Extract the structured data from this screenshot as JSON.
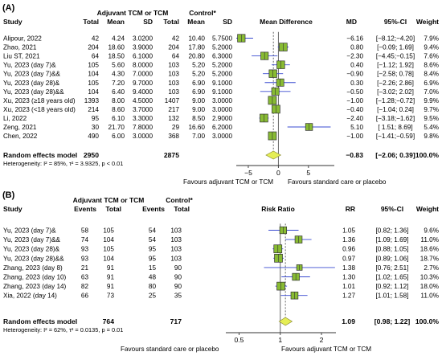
{
  "chart_data": [
    {
      "type": "forest",
      "panel_label": "(A)",
      "column_headers": {
        "study": "Study",
        "group_treatment": "Adjuvant TCM or TCM",
        "group_control": "Control*",
        "total": "Total",
        "mean": "Mean",
        "sd": "SD",
        "effect": "Mean Difference",
        "estimate": "MD",
        "ci": "95%-CI",
        "weight": "Weight"
      },
      "studies": [
        {
          "name": "Alipour, 2022",
          "t_total": "42",
          "t_mean": "4.24",
          "t_sd": "3.0200",
          "c_total": "42",
          "c_mean": "10.40",
          "c_sd": "5.7500",
          "est": -6.16,
          "lo": -8.12,
          "hi": -4.2,
          "est_text": "−6.16",
          "ci_text": "[−8.12;−4.20]",
          "weight": "7.9%"
        },
        {
          "name": "Zhao, 2021",
          "t_total": "204",
          "t_mean": "18.60",
          "t_sd": "3.9000",
          "c_total": "204",
          "c_mean": "17.80",
          "c_sd": "5.2000",
          "est": 0.8,
          "lo": -0.09,
          "hi": 1.69,
          "est_text": "0.80",
          "ci_text": "[−0.09; 1.69]",
          "weight": "9.4%"
        },
        {
          "name": "Liu ST, 2021",
          "t_total": "64",
          "t_mean": "18.50",
          "t_sd": "6.1000",
          "c_total": "64",
          "c_mean": "20.80",
          "c_sd": "6.3000",
          "est": -2.3,
          "lo": -4.45,
          "hi": -0.15,
          "est_text": "−2.30",
          "ci_text": "[−4.45;−0.15]",
          "weight": "7.6%"
        },
        {
          "name": "Yu, 2023 (day 7)&",
          "t_total": "105",
          "t_mean": "5.60",
          "t_sd": "8.0000",
          "c_total": "103",
          "c_mean": "5.20",
          "c_sd": "5.2000",
          "est": 0.4,
          "lo": -1.12,
          "hi": 1.92,
          "est_text": "0.40",
          "ci_text": "[−1.12; 1.92]",
          "weight": "8.6%"
        },
        {
          "name": "Yu, 2023 (day 7)&&",
          "t_total": "104",
          "t_mean": "4.30",
          "t_sd": "7.0000",
          "c_total": "103",
          "c_mean": "5.20",
          "c_sd": "5.2000",
          "est": -0.9,
          "lo": -2.58,
          "hi": 0.78,
          "est_text": "−0.90",
          "ci_text": "[−2.58; 0.78]",
          "weight": "8.4%"
        },
        {
          "name": "Yu, 2023 (day 28)&",
          "t_total": "105",
          "t_mean": "7.20",
          "t_sd": "9.7000",
          "c_total": "103",
          "c_mean": "6.90",
          "c_sd": "9.1000",
          "est": 0.3,
          "lo": -2.26,
          "hi": 2.86,
          "est_text": "0.30",
          "ci_text": "[−2.26; 2.86]",
          "weight": "6.9%"
        },
        {
          "name": "Yu, 2023 (day 28)&&",
          "t_total": "104",
          "t_mean": "6.40",
          "t_sd": "9.4000",
          "c_total": "103",
          "c_mean": "6.90",
          "c_sd": "9.1000",
          "est": -0.5,
          "lo": -3.02,
          "hi": 2.02,
          "est_text": "−0.50",
          "ci_text": "[−3.02; 2.02]",
          "weight": "7.0%"
        },
        {
          "name": "Xu, 2023 (≥18 years old)",
          "t_total": "1393",
          "t_mean": "8.00",
          "t_sd": "4.5000",
          "c_total": "1407",
          "c_mean": "9.00",
          "c_sd": "3.0000",
          "est": -1.0,
          "lo": -1.28,
          "hi": -0.72,
          "est_text": "−1.00",
          "ci_text": "[−1.28;−0.72]",
          "weight": "9.9%"
        },
        {
          "name": "Xu, 2023 (<18 years old)",
          "t_total": "214",
          "t_mean": "8.60",
          "t_sd": "3.7000",
          "c_total": "217",
          "c_mean": "9.00",
          "c_sd": "3.0000",
          "est": -0.4,
          "lo": -1.04,
          "hi": 0.24,
          "est_text": "−0.40",
          "ci_text": "[−1.04; 0.24]",
          "weight": "9.7%"
        },
        {
          "name": "Li, 2022",
          "t_total": "95",
          "t_mean": "6.10",
          "t_sd": "3.3000",
          "c_total": "132",
          "c_mean": "8.50",
          "c_sd": "2.9000",
          "est": -2.4,
          "lo": -3.18,
          "hi": -1.62,
          "est_text": "−2.40",
          "ci_text": "[−3.18;−1.62]",
          "weight": "9.5%"
        },
        {
          "name": "Zeng, 2021",
          "t_total": "30",
          "t_mean": "21.70",
          "t_sd": "7.8000",
          "c_total": "29",
          "c_mean": "16.60",
          "c_sd": "6.2000",
          "est": 5.1,
          "lo": 1.51,
          "hi": 8.69,
          "est_text": "5.10",
          "ci_text": "[ 1.51; 8.69]",
          "weight": "5.4%"
        },
        {
          "name": "Chen, 2022",
          "t_total": "490",
          "t_mean": "6.00",
          "t_sd": "3.0000",
          "c_total": "368",
          "c_mean": "7.00",
          "c_sd": "3.0000",
          "est": -1.0,
          "lo": -1.41,
          "hi": -0.59,
          "est_text": "−1.00",
          "ci_text": "[−1.41;−0.59]",
          "weight": "9.8%"
        }
      ],
      "pooled": {
        "label": "Random effects model",
        "t_total": "2950",
        "c_total": "2875",
        "est": -0.83,
        "lo": -2.06,
        "hi": 0.39,
        "est_text": "−0.83",
        "ci_text": "[−2.06; 0.39]",
        "weight": "100.0%"
      },
      "heterogeneity": "Heterogeneity: I² = 85%, τ² = 3.9325, p < 0.01",
      "axis": {
        "min": -7,
        "max": 9.3,
        "ticks": [
          -5,
          0,
          5
        ],
        "tick_labels": [
          "−5",
          "0",
          "5"
        ],
        "null_value": 0
      },
      "favours_left": "Favours adjuvant TCM or TCM",
      "favours_right": "Favours standard care or placebo",
      "colors": {
        "box": "#88bb33",
        "box_border": "#333333",
        "ci_line": "#3a4bd0",
        "diamond": "#e5ee55",
        "reference_line": "#555555",
        "text": "#1a1a1a"
      }
    },
    {
      "type": "forest",
      "panel_label": "(B)",
      "column_headers": {
        "study": "Study",
        "group_treatment": "Adjuvant TCM or TCM",
        "group_control": "Control*",
        "events": "Events",
        "total": "Total",
        "effect": "Risk Ratio",
        "estimate": "RR",
        "ci": "95%-CI",
        "weight": "Weight"
      },
      "studies": [
        {
          "name": "Yu, 2023 (day 7)&",
          "t_events": "58",
          "t_total": "105",
          "c_events": "54",
          "c_total": "103",
          "est": 1.05,
          "lo": 0.82,
          "hi": 1.36,
          "est_text": "1.05",
          "ci_text": "[0.82; 1.36]",
          "weight": "9.6%"
        },
        {
          "name": "Yu, 2023 (day 7)&&",
          "t_events": "74",
          "t_total": "104",
          "c_events": "54",
          "c_total": "103",
          "est": 1.36,
          "lo": 1.09,
          "hi": 1.69,
          "est_text": "1.36",
          "ci_text": "[1.09; 1.69]",
          "weight": "11.0%"
        },
        {
          "name": "Yu, 2023 (day 28)&",
          "t_events": "93",
          "t_total": "105",
          "c_events": "95",
          "c_total": "103",
          "est": 0.96,
          "lo": 0.88,
          "hi": 1.05,
          "est_text": "0.96",
          "ci_text": "[0.88; 1.05]",
          "weight": "18.6%"
        },
        {
          "name": "Yu, 2023 (day 28)&&",
          "t_events": "93",
          "t_total": "104",
          "c_events": "95",
          "c_total": "103",
          "est": 0.97,
          "lo": 0.89,
          "hi": 1.06,
          "est_text": "0.97",
          "ci_text": "[0.89; 1.06]",
          "weight": "18.7%"
        },
        {
          "name": "Zhang, 2023 (day 8)",
          "t_events": "21",
          "t_total": "91",
          "c_events": "15",
          "c_total": "90",
          "est": 1.38,
          "lo": 0.76,
          "hi": 2.51,
          "est_text": "1.38",
          "ci_text": "[0.76; 2.51]",
          "weight": "2.7%"
        },
        {
          "name": "Zhang, 2023 (day 10)",
          "t_events": "63",
          "t_total": "91",
          "c_events": "48",
          "c_total": "90",
          "est": 1.3,
          "lo": 1.02,
          "hi": 1.65,
          "est_text": "1.30",
          "ci_text": "[1.02; 1.65]",
          "weight": "10.3%"
        },
        {
          "name": "Zhang, 2023 (day 14)",
          "t_events": "82",
          "t_total": "91",
          "c_events": "80",
          "c_total": "90",
          "est": 1.01,
          "lo": 0.92,
          "hi": 1.12,
          "est_text": "1.01",
          "ci_text": "[0.92; 1.12]",
          "weight": "18.0%"
        },
        {
          "name": "Xia, 2022 (day 14)",
          "t_events": "66",
          "t_total": "73",
          "c_events": "25",
          "c_total": "35",
          "est": 1.27,
          "lo": 1.01,
          "hi": 1.58,
          "est_text": "1.27",
          "ci_text": "[1.01; 1.58]",
          "weight": "11.0%"
        }
      ],
      "pooled": {
        "label": "Random effects model",
        "t_total": "764",
        "c_total": "717",
        "est": 1.09,
        "lo": 0.98,
        "hi": 1.22,
        "est_text": "1.09",
        "ci_text": "[0.98; 1.22]",
        "weight": "100.0%"
      },
      "heterogeneity": "Heterogeneity: I² = 62%, τ² = 0.0135, p = 0.01",
      "axis": {
        "min": 0.4,
        "max": 2.55,
        "ticks": [
          0.5,
          1,
          2
        ],
        "tick_labels": [
          "0.5",
          "1",
          "2"
        ],
        "scale": "log",
        "null_value": 1
      },
      "favours_left": "Favours standard care or placebo",
      "favours_right": "Favours adjuvant TCM or TCM",
      "colors": {
        "box": "#88bb33",
        "box_border": "#333333",
        "ci_line": "#3a4bd0",
        "diamond": "#e5ee55",
        "reference_line": "#555555",
        "text": "#1a1a1a"
      }
    }
  ]
}
